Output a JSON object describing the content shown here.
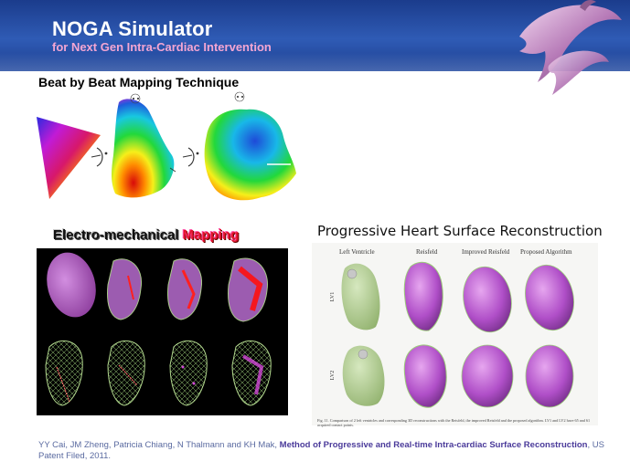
{
  "header": {
    "title": "NOGA Simulator",
    "subtitle": "for Next Gen Intra-Cardiac Intervention",
    "logo_icon": "dolphin-icon"
  },
  "sections": {
    "beat_title": "Beat by Beat Mapping Technique",
    "em_title_part1": "Electro-mechanical ",
    "em_title_part2": "Mapping",
    "progressive_title": "Progressive Heart Surface Reconstruction"
  },
  "progressive_figure": {
    "columns": [
      "Left Ventricle",
      "Reisfeld",
      "Improved Reisfeld",
      "Proposed Algorithm"
    ],
    "rows": [
      "LV1",
      "LV2"
    ],
    "caption": "Fig. 11. Comparison of 2 left ventricles and corresponding 3D reconstructions with the Reisfeld, the improved Reisfeld and the proposed algorithm. LV1 and LV2 have 65 and 61 acquired contact points."
  },
  "footer": {
    "authors": "YY Cai, JM Zheng, Patricia Chiang, N Thalmann and KH Mak, ",
    "patent_title": "Method of Progressive and Real-time Intra-cardiac Surface Reconstruction",
    "patent_status": ", US Patent Filed, 2011."
  },
  "colors": {
    "header_blue": "#1b3c8c",
    "subtitle_pink": "#f4a6d3",
    "mapping_red": "#e2152b",
    "mesh_purple": "#b04fc8",
    "tissue_green": "#a9c98a"
  }
}
